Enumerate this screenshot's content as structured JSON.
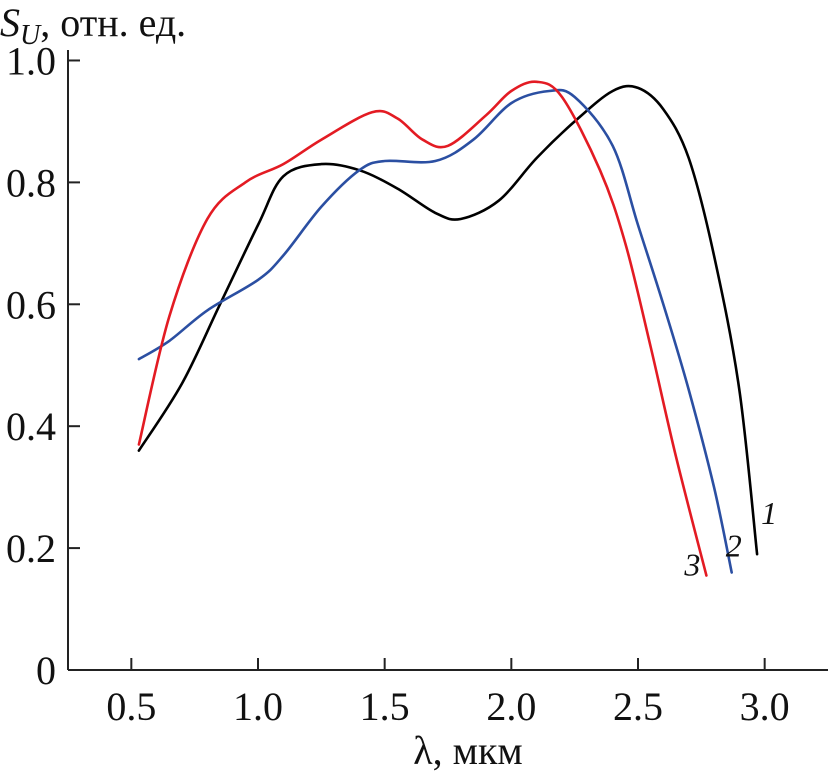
{
  "chart_data": {
    "type": "line",
    "ylabel_main": "S",
    "ylabel_sub": "U",
    "ylabel_rest": ", отн. ед.",
    "xlabel": "λ, мкм",
    "xlim": [
      0.25,
      3.25
    ],
    "ylim": [
      0,
      1.05
    ],
    "x_ticks": [
      0.5,
      1.0,
      1.5,
      2.0,
      2.5,
      3.0
    ],
    "x_tick_labels": [
      "0.5",
      "1.0",
      "1.5",
      "2.0",
      "2.5",
      "3.0"
    ],
    "y_ticks": [
      0,
      0.2,
      0.4,
      0.6,
      0.8,
      1.0
    ],
    "y_tick_labels": [
      "0",
      "0.2",
      "0.4",
      "0.6",
      "0.8",
      "1.0"
    ],
    "grid": false,
    "series": [
      {
        "label": "1",
        "color": "#000000",
        "points": [
          [
            0.53,
            0.36
          ],
          [
            0.7,
            0.47
          ],
          [
            0.85,
            0.6
          ],
          [
            1.0,
            0.73
          ],
          [
            1.1,
            0.81
          ],
          [
            1.25,
            0.83
          ],
          [
            1.4,
            0.82
          ],
          [
            1.55,
            0.79
          ],
          [
            1.7,
            0.75
          ],
          [
            1.8,
            0.74
          ],
          [
            1.95,
            0.77
          ],
          [
            2.1,
            0.84
          ],
          [
            2.25,
            0.9
          ],
          [
            2.4,
            0.95
          ],
          [
            2.5,
            0.955
          ],
          [
            2.6,
            0.92
          ],
          [
            2.7,
            0.84
          ],
          [
            2.8,
            0.68
          ],
          [
            2.9,
            0.46
          ],
          [
            2.97,
            0.19
          ]
        ]
      },
      {
        "label": "2",
        "color": "#2b4fa2",
        "points": [
          [
            0.53,
            0.51
          ],
          [
            0.65,
            0.54
          ],
          [
            0.8,
            0.59
          ],
          [
            1.0,
            0.64
          ],
          [
            1.1,
            0.68
          ],
          [
            1.25,
            0.76
          ],
          [
            1.4,
            0.82
          ],
          [
            1.5,
            0.835
          ],
          [
            1.7,
            0.835
          ],
          [
            1.85,
            0.87
          ],
          [
            2.0,
            0.93
          ],
          [
            2.15,
            0.95
          ],
          [
            2.25,
            0.94
          ],
          [
            2.4,
            0.86
          ],
          [
            2.5,
            0.73
          ],
          [
            2.6,
            0.6
          ],
          [
            2.7,
            0.46
          ],
          [
            2.8,
            0.3
          ],
          [
            2.87,
            0.16
          ]
        ]
      },
      {
        "label": "3",
        "color": "#e31b23",
        "points": [
          [
            0.53,
            0.37
          ],
          [
            0.65,
            0.58
          ],
          [
            0.8,
            0.74
          ],
          [
            0.95,
            0.8
          ],
          [
            1.1,
            0.83
          ],
          [
            1.25,
            0.87
          ],
          [
            1.45,
            0.915
          ],
          [
            1.55,
            0.905
          ],
          [
            1.65,
            0.87
          ],
          [
            1.75,
            0.86
          ],
          [
            1.9,
            0.91
          ],
          [
            2.0,
            0.95
          ],
          [
            2.1,
            0.965
          ],
          [
            2.2,
            0.94
          ],
          [
            2.35,
            0.82
          ],
          [
            2.45,
            0.7
          ],
          [
            2.55,
            0.53
          ],
          [
            2.65,
            0.35
          ],
          [
            2.77,
            0.155
          ]
        ]
      }
    ]
  }
}
